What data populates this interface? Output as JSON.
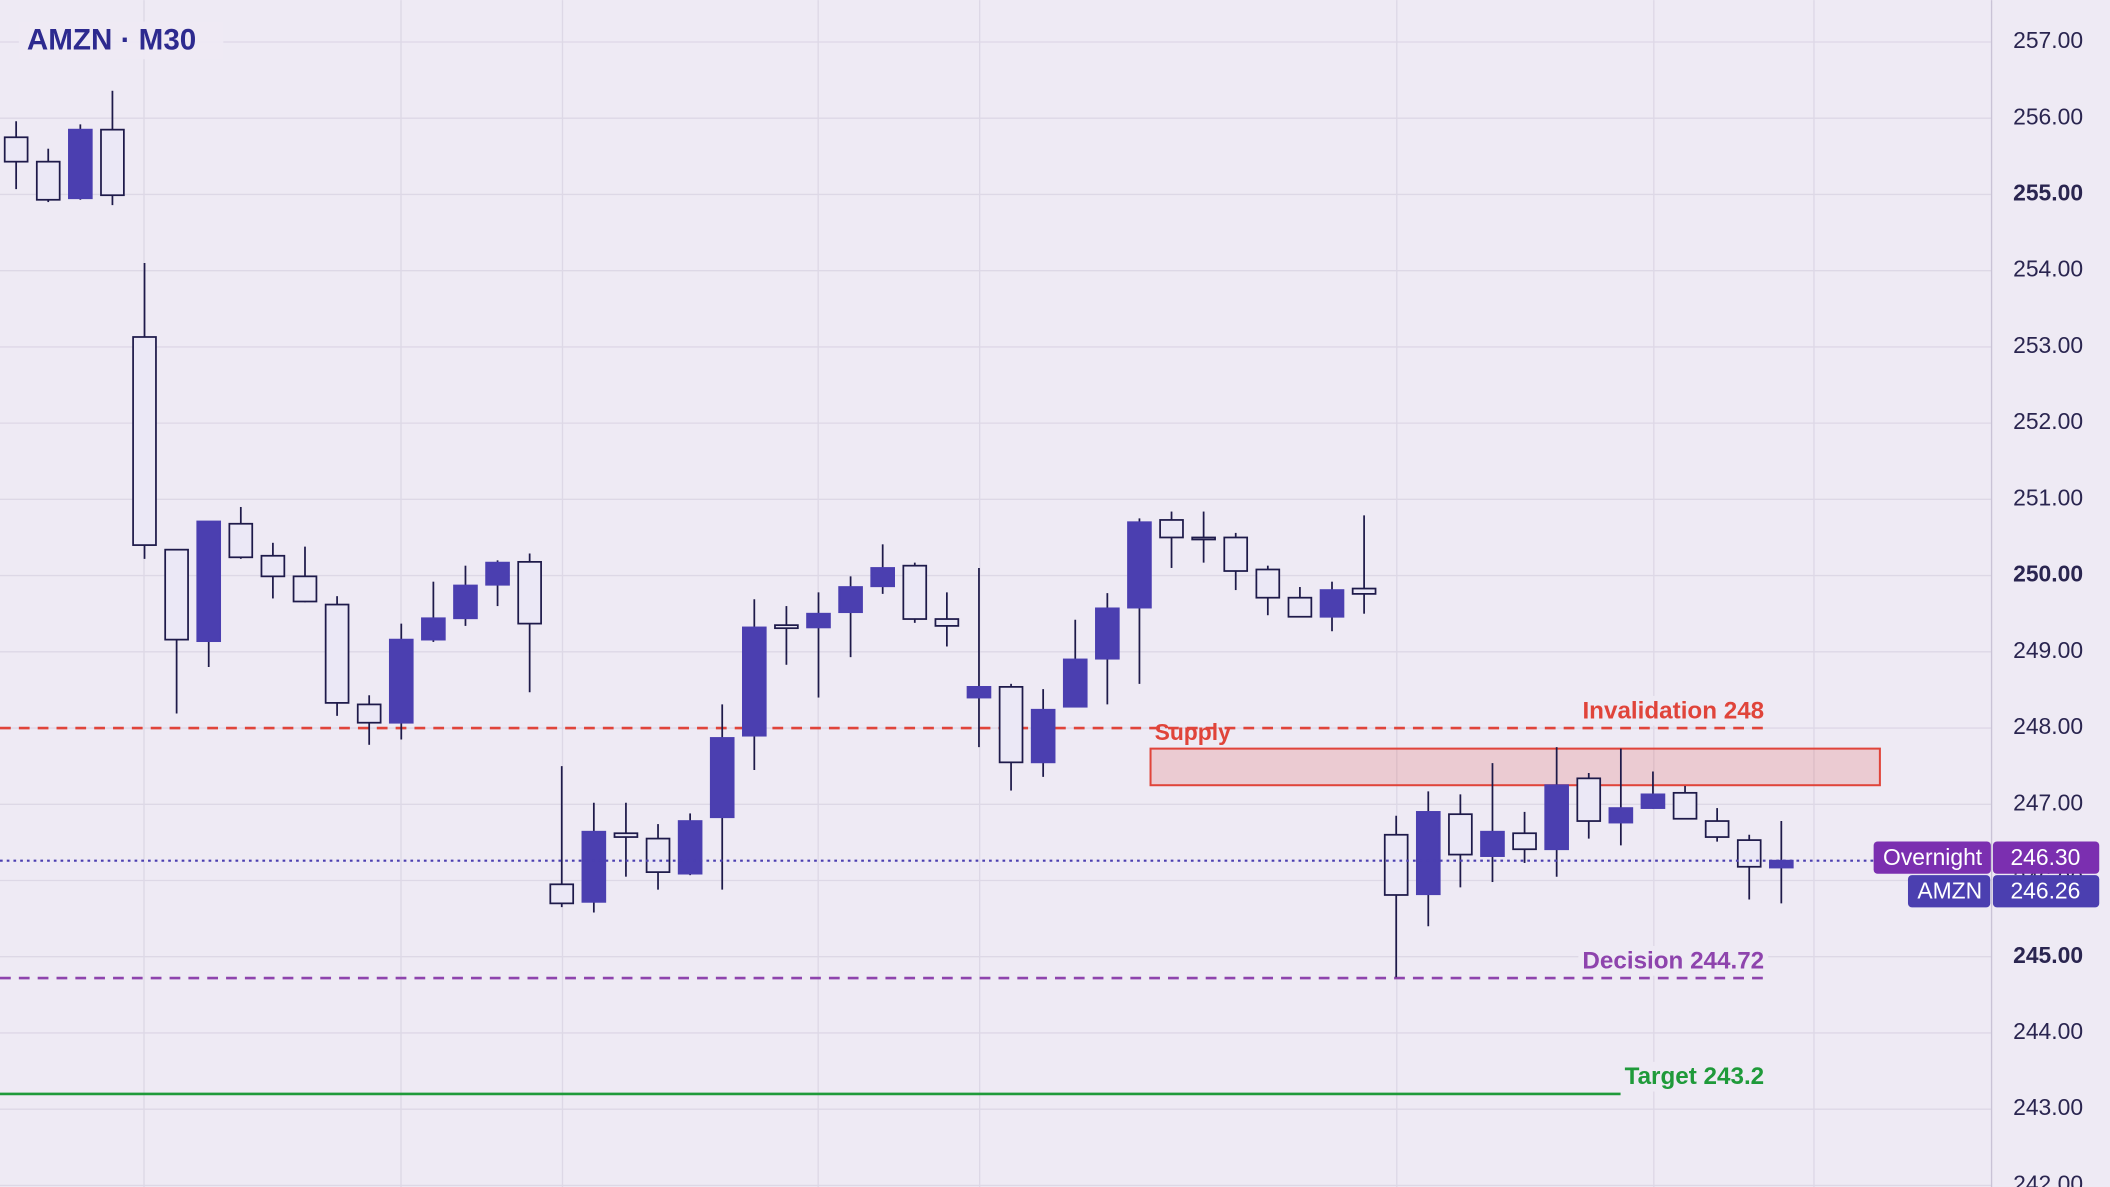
{
  "chart_data": {
    "type": "candlestick",
    "title": "AMZN · M30",
    "ylim": [
      241.98,
      257.55
    ],
    "yticks": [
      {
        "value": 242,
        "label": "242.00"
      },
      {
        "value": 243,
        "label": "243.00"
      },
      {
        "value": 244,
        "label": "244.00"
      },
      {
        "value": 245,
        "label": "245.00"
      },
      {
        "value": 246,
        "label": "246.00"
      },
      {
        "value": 247,
        "label": "247.00"
      },
      {
        "value": 248,
        "label": "248.00"
      },
      {
        "value": 249,
        "label": "249.00"
      },
      {
        "value": 250,
        "label": "250.00"
      },
      {
        "value": 251,
        "label": "251.00"
      },
      {
        "value": 252,
        "label": "252.00"
      },
      {
        "value": 253,
        "label": "253.00"
      },
      {
        "value": 254,
        "label": "254.00"
      },
      {
        "value": 255,
        "label": "255.00"
      },
      {
        "value": 256,
        "label": "256.00"
      },
      {
        "value": 257,
        "label": "257.00"
      }
    ],
    "grid": true,
    "series": [
      {
        "up_color": "#4b3fb0",
        "down_color": "#ebe8f6",
        "open": [
          255.75,
          255.43,
          254.95,
          255.85,
          253.13,
          250.34,
          249.14,
          250.68,
          250.26,
          249.99,
          249.62,
          248.31,
          248.07,
          249.16,
          249.44,
          249.88,
          250.18,
          245.95,
          245.72,
          246.62,
          246.55,
          246.09,
          246.83,
          247.9,
          249.35,
          249.32,
          249.52,
          249.86,
          250.13,
          249.43,
          248.4,
          248.54,
          247.55,
          248.28,
          248.91,
          249.58,
          250.73,
          250.5,
          250.5,
          250.08,
          249.71,
          249.46,
          249.83,
          246.6,
          245.82,
          246.87,
          246.32,
          246.62,
          246.41,
          247.34,
          246.76,
          246.95,
          247.15,
          246.78,
          246.53,
          246.17
        ],
        "high": [
          255.96,
          255.6,
          255.92,
          256.36,
          254.1,
          250.34,
          250.71,
          250.9,
          250.43,
          250.38,
          249.73,
          248.43,
          249.37,
          249.92,
          250.13,
          250.2,
          250.29,
          247.5,
          247.02,
          247.02,
          246.74,
          246.88,
          248.31,
          249.69,
          249.6,
          249.78,
          249.99,
          250.41,
          250.17,
          249.78,
          250.1,
          248.58,
          248.51,
          249.42,
          249.77,
          250.75,
          250.84,
          250.84,
          250.56,
          250.13,
          249.85,
          249.92,
          250.79,
          246.85,
          247.17,
          247.13,
          247.54,
          246.9,
          247.75,
          247.41,
          247.73,
          247.43,
          247.24,
          246.95,
          246.6,
          246.78
        ],
        "low": [
          255.07,
          254.9,
          254.93,
          254.86,
          250.22,
          248.19,
          248.8,
          250.22,
          249.7,
          249.65,
          248.16,
          247.78,
          247.85,
          249.13,
          249.34,
          249.6,
          248.47,
          245.65,
          245.58,
          246.05,
          245.88,
          246.07,
          245.88,
          247.45,
          248.83,
          248.4,
          248.93,
          249.76,
          249.38,
          249.07,
          247.75,
          247.18,
          247.36,
          248.28,
          248.31,
          248.58,
          250.1,
          250.17,
          249.81,
          249.48,
          249.46,
          249.27,
          249.5,
          244.73,
          245.4,
          245.91,
          245.98,
          246.23,
          246.05,
          246.55,
          246.46,
          246.94,
          246.81,
          246.51,
          245.75,
          245.7
        ],
        "close": [
          255.43,
          254.93,
          255.85,
          254.99,
          250.4,
          249.16,
          250.71,
          250.24,
          249.99,
          249.66,
          248.33,
          248.07,
          249.16,
          249.44,
          249.87,
          250.17,
          249.37,
          245.7,
          246.64,
          246.57,
          246.11,
          246.78,
          247.87,
          249.32,
          249.31,
          249.5,
          249.85,
          250.1,
          249.43,
          249.34,
          248.54,
          247.55,
          248.24,
          248.9,
          249.57,
          250.7,
          250.5,
          250.48,
          250.06,
          249.71,
          249.46,
          249.81,
          249.76,
          245.81,
          246.9,
          246.34,
          246.64,
          246.41,
          247.25,
          246.78,
          246.95,
          247.13,
          246.81,
          246.57,
          246.18,
          246.26
        ]
      }
    ],
    "levels": [
      {
        "label": "Invalidation 248",
        "value": 248,
        "color": "#e0443a",
        "style": "dashed"
      },
      {
        "label": "Decision 244.72",
        "value": 244.72,
        "color": "#8e44ad",
        "style": "dashed"
      },
      {
        "label": "Target 243.2",
        "value": 243.2,
        "color": "#1f9a3a",
        "style": "solid"
      }
    ],
    "zones": [
      {
        "label": "Supply",
        "low": 247.25,
        "high": 247.73,
        "color": "#e0443a"
      }
    ],
    "price_tags": [
      {
        "label": "Overnight",
        "value": 246.3,
        "value_label": "246.30",
        "color": "#7b2fb0"
      },
      {
        "label": "AMZN",
        "value": 246.26,
        "value_label": "246.26",
        "color": "#4b3fb0"
      }
    ]
  }
}
